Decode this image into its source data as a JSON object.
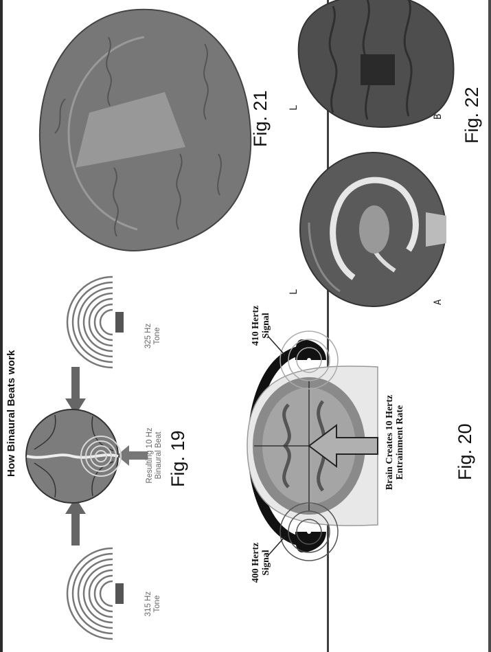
{
  "fig19": {
    "heading": "How Binaural Beats work",
    "tone_left": "315 Hz",
    "tone_left_unit": "Tone",
    "tone_right": "325 Hz",
    "tone_right_unit": "Tone",
    "beat_line1": "Resulting 10 Hz",
    "beat_line2": "Binaural Beat",
    "caption": "Fig. 19"
  },
  "fig20": {
    "signal_left_1": "400 Hertz",
    "signal_left_2": "Signal",
    "signal_right_1": "410 Hertz",
    "signal_right_2": "Signal",
    "entrain_1": "Brain Creates 10 Hertz",
    "entrain_2": "Entrainment Rate",
    "caption": "Fig. 20"
  },
  "fig21": {
    "caption": "Fig. 21"
  },
  "fig22": {
    "caption": "Fig. 22",
    "label_l": "L",
    "label_a": "A",
    "label_b": "B"
  }
}
